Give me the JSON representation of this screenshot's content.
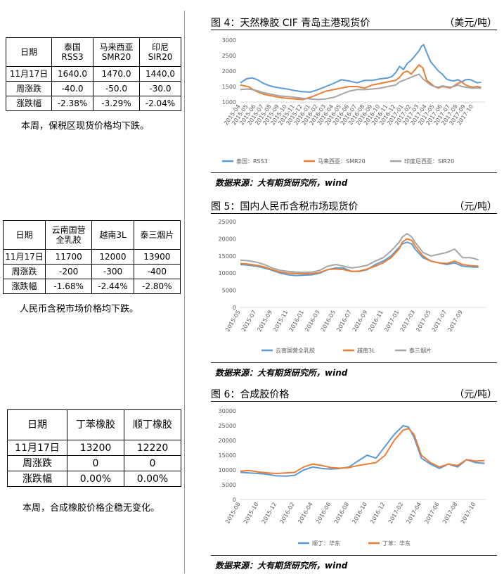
{
  "table1": {
    "headers": [
      [
        "日期"
      ],
      [
        "泰国",
        "RSS3"
      ],
      [
        "马来西亚",
        "SMR20"
      ],
      [
        "印尼",
        "SIR20"
      ]
    ],
    "rows": [
      [
        "11月17日",
        "1640.0",
        "1470.0",
        "1440.0"
      ],
      [
        "周涨跌",
        "-40.0",
        "-50.0",
        "-30.0"
      ],
      [
        "涨跌幅",
        "-2.38%",
        "-3.29%",
        "-2.04%"
      ]
    ],
    "note": "本周，保税区现货价格均下跌。"
  },
  "table2": {
    "headers": [
      [
        "日期"
      ],
      [
        "云南国营",
        "全乳胶"
      ],
      [
        "越南3L"
      ],
      [
        "泰三烟片"
      ]
    ],
    "rows": [
      [
        "11月17日",
        "11700",
        "12000",
        "13900"
      ],
      [
        "周涨跌",
        "-200",
        "-300",
        "-400"
      ],
      [
        "涨跌幅",
        "-1.68%",
        "-2.44%",
        "-2.80%"
      ]
    ],
    "note": "人民币含税市场价格均下跌。"
  },
  "table3": {
    "headers": [
      [
        "日期"
      ],
      [
        "丁苯橡胶"
      ],
      [
        "顺丁橡胶"
      ]
    ],
    "rows": [
      [
        "11月17日",
        "13200",
        "12220"
      ],
      [
        "周涨跌",
        "0",
        "0"
      ],
      [
        "涨跌幅",
        "0.00%",
        "0.00%"
      ]
    ],
    "note": "本周，合成橡胶价格企稳无变化。"
  },
  "figures": [
    {
      "title": "图 4：天然橡胶 CIF 青岛主港现货价",
      "unit": "（美元/吨）",
      "source": "数据来源：大有期货研究所，wind"
    },
    {
      "title": "图 5：国内人民币含税市场现货价",
      "unit": "（元/吨）",
      "source": "数据来源：大有期货研究所，wind"
    },
    {
      "title": "图 6：合成胶价格",
      "unit": "（元/吨）",
      "source": "数据来源：大有期货研究所，wind"
    }
  ],
  "chart_data": [
    {
      "type": "line",
      "yticks": [
        1000,
        1500,
        2000,
        2500,
        3000
      ],
      "ylim": [
        1000,
        3000
      ],
      "xlabels": [
        "2015-04",
        "2015-05",
        "2015-06",
        "2015-07",
        "2015-08",
        "2015-09",
        "2015-10",
        "2015-11",
        "2015-12",
        "2016-01",
        "2016-02",
        "2016-03",
        "2016-04",
        "2016-05",
        "2016-06",
        "2016-07",
        "2016-08",
        "2016-09",
        "2016-10",
        "2016-11",
        "2016-12",
        "2017-01",
        "2017-02",
        "2017-03",
        "2017-04",
        "2017-05",
        "2017-06",
        "2017-07",
        "2017-08",
        "2017-09",
        "2017-10"
      ],
      "xlim": [
        0,
        31.5
      ],
      "series": [
        {
          "name": "泰国：RSS3",
          "color": "#5b9bd5",
          "x": [
            0,
            0.8,
            1.5,
            2.2,
            3,
            3.8,
            4.5,
            5.2,
            6,
            6.8,
            7.5,
            8.2,
            9,
            10,
            11,
            12,
            13,
            14,
            15,
            16,
            17,
            18,
            19,
            19.5,
            20,
            20.5,
            21,
            21.5,
            22,
            22.5,
            23,
            23.3,
            23.6,
            24,
            24.5,
            25,
            25.5,
            26,
            26.5,
            27,
            27.5,
            28,
            28.5,
            29,
            29.5,
            30,
            30.5,
            31
          ],
          "y": [
            1620,
            1750,
            1780,
            1720,
            1600,
            1520,
            1480,
            1450,
            1420,
            1380,
            1350,
            1330,
            1320,
            1400,
            1500,
            1600,
            1720,
            1680,
            1620,
            1700,
            1700,
            1750,
            1780,
            1820,
            1950,
            2150,
            2050,
            2250,
            2350,
            2500,
            2650,
            2800,
            2850,
            2600,
            2300,
            2150,
            2000,
            1900,
            1750,
            1700,
            1680,
            1720,
            1650,
            1720,
            1730,
            1680,
            1620,
            1640
          ]
        },
        {
          "name": "马来西亚：SMR20",
          "color": "#ed7d31",
          "x": [
            0,
            1,
            2,
            3,
            4,
            5,
            6,
            7,
            8,
            9,
            10,
            11,
            12,
            13,
            14,
            15,
            16,
            17,
            18,
            19,
            20,
            20.5,
            21,
            21.5,
            22,
            22.5,
            23,
            23.5,
            24,
            24.5,
            25,
            25.5,
            26,
            26.5,
            27,
            27.5,
            28,
            28.5,
            29,
            29.5,
            30,
            30.5,
            31
          ],
          "y": [
            1550,
            1500,
            1350,
            1250,
            1200,
            1150,
            1120,
            1100,
            1080,
            1150,
            1250,
            1350,
            1400,
            1450,
            1500,
            1500,
            1450,
            1550,
            1600,
            1650,
            1700,
            1800,
            1950,
            2000,
            1900,
            2050,
            2200,
            2100,
            1700,
            1600,
            1500,
            1450,
            1500,
            1480,
            1450,
            1520,
            1600,
            1650,
            1550,
            1500,
            1480,
            1500,
            1470
          ]
        },
        {
          "name": "印度尼西亚：SIR20",
          "color": "#a5a5a5",
          "x": [
            0,
            1,
            2,
            3,
            4,
            5,
            6,
            7,
            8,
            9,
            10,
            11,
            12,
            13,
            14,
            15,
            16,
            17,
            18,
            19,
            20,
            20.5,
            21,
            21.5,
            22,
            22.5,
            23,
            23.5,
            24,
            24.5,
            25,
            25.5,
            26,
            26.5,
            27,
            27.5,
            28,
            28.5,
            29,
            29.5,
            30,
            30.5,
            31
          ],
          "y": [
            1400,
            1420,
            1380,
            1300,
            1250,
            1200,
            1180,
            1150,
            1120,
            1100,
            1080,
            1100,
            1150,
            1250,
            1350,
            1400,
            1400,
            1420,
            1450,
            1500,
            1550,
            1650,
            1700,
            1750,
            1800,
            1850,
            1900,
            1750,
            1650,
            1550,
            1500,
            1480,
            1520,
            1500,
            1480,
            1500,
            1550,
            1500,
            1480,
            1460,
            1450,
            1460,
            1440
          ]
        }
      ]
    },
    {
      "type": "line",
      "yticks": [
        0,
        5000,
        10000,
        15000,
        20000,
        25000
      ],
      "ylim": [
        0,
        25000
      ],
      "xlabels": [
        "2015-05",
        "2015-07",
        "2015-09",
        "2015-11",
        "2016-01",
        "2016-03",
        "2016-05",
        "2016-07",
        "2016-09",
        "2016-11",
        "2017-01",
        "2017-03",
        "2017-05",
        "2017-07",
        "2017-09"
      ],
      "xlim": [
        0,
        15.5
      ],
      "series": [
        {
          "name": "云南国营全乳胶",
          "color": "#5b9bd5",
          "x": [
            0,
            0.5,
            1,
            1.5,
            2,
            2.5,
            3,
            3.5,
            4,
            4.5,
            5,
            5.5,
            6,
            6.5,
            7,
            7.5,
            8,
            8.5,
            9,
            9.5,
            10,
            10.2,
            10.5,
            10.8,
            11,
            11.5,
            12,
            12.5,
            13,
            13.5,
            14,
            14.5,
            15
          ],
          "y": [
            12500,
            12300,
            12000,
            11500,
            10800,
            10000,
            9500,
            9300,
            9400,
            9500,
            10000,
            11000,
            11500,
            11500,
            10500,
            10500,
            11000,
            12500,
            13500,
            15000,
            17500,
            18500,
            19000,
            18500,
            17000,
            14500,
            13500,
            13000,
            12500,
            13000,
            12000,
            11800,
            11700
          ]
        },
        {
          "name": "越南3L",
          "color": "#ed7d31",
          "x": [
            0,
            0.5,
            1,
            1.5,
            2,
            2.5,
            3,
            3.5,
            4,
            4.5,
            5,
            5.5,
            6,
            6.5,
            7,
            7.5,
            8,
            8.5,
            9,
            9.5,
            10,
            10.2,
            10.5,
            10.8,
            11,
            11.5,
            12,
            12.5,
            13,
            13.5,
            14,
            14.5,
            15
          ],
          "y": [
            12800,
            12600,
            12300,
            11800,
            11000,
            10300,
            10000,
            9900,
            9800,
            9900,
            10200,
            11000,
            11200,
            11000,
            10500,
            10600,
            11200,
            12000,
            13000,
            14500,
            17000,
            19000,
            20000,
            19500,
            18000,
            15000,
            13500,
            13000,
            12800,
            13500,
            12500,
            12200,
            12000
          ]
        },
        {
          "name": "泰三烟片",
          "color": "#a5a5a5",
          "x": [
            0,
            0.5,
            1,
            1.5,
            2,
            2.5,
            3,
            3.5,
            4,
            4.5,
            5,
            5.5,
            6,
            6.5,
            7,
            7.5,
            8,
            8.5,
            9,
            9.5,
            10,
            10.2,
            10.5,
            10.8,
            11,
            11.5,
            12,
            12.5,
            13,
            13.5,
            14,
            14.5,
            15
          ],
          "y": [
            13800,
            13600,
            13200,
            12500,
            11500,
            10800,
            10500,
            10300,
            10200,
            10300,
            10800,
            12000,
            12500,
            12000,
            11500,
            11800,
            12300,
            13500,
            14500,
            16500,
            19000,
            20500,
            21500,
            20500,
            19000,
            16000,
            15000,
            15500,
            16000,
            17000,
            14500,
            14500,
            13900
          ]
        }
      ]
    },
    {
      "type": "line",
      "yticks": [
        0,
        5000,
        10000,
        15000,
        20000,
        25000,
        30000
      ],
      "ylim": [
        0,
        30000
      ],
      "xlabels": [
        "2015-08",
        "2015-10",
        "2015-12",
        "2016-02",
        "2016-04",
        "2016-06",
        "2016-08",
        "2016-10",
        "2016-12",
        "2017-02",
        "2017-04",
        "2017-06",
        "2017-08",
        "2017-10"
      ],
      "xlim": [
        0,
        13.6
      ],
      "series": [
        {
          "name": "顺丁：华东",
          "color": "#5b9bd5",
          "x": [
            0,
            0.5,
            1,
            1.5,
            2,
            2.5,
            3,
            3.5,
            4,
            4.5,
            5,
            5.5,
            6,
            6.5,
            7,
            7.5,
            8,
            8.5,
            9,
            9.3,
            9.6,
            10,
            10.5,
            11,
            11.5,
            12,
            12.5,
            13,
            13.5
          ],
          "y": [
            9200,
            9000,
            8800,
            8500,
            8000,
            7900,
            8200,
            10000,
            11000,
            10500,
            10300,
            10500,
            11000,
            13000,
            15000,
            14000,
            18000,
            22000,
            25000,
            24500,
            21000,
            14000,
            12000,
            10500,
            12000,
            11000,
            13500,
            12500,
            12220
          ]
        },
        {
          "name": "丁苯：华东",
          "color": "#ed7d31",
          "x": [
            0,
            0.5,
            1,
            1.5,
            2,
            2.5,
            3,
            3.5,
            4,
            4.5,
            5,
            5.5,
            6,
            6.5,
            7,
            7.5,
            8,
            8.5,
            9,
            9.3,
            9.6,
            10,
            10.5,
            11,
            11.5,
            12,
            12.5,
            13,
            13.5
          ],
          "y": [
            9600,
            9800,
            9300,
            9000,
            8800,
            9000,
            9200,
            11000,
            12000,
            11500,
            10800,
            10600,
            10800,
            11500,
            12000,
            12500,
            15000,
            20000,
            23500,
            24000,
            22000,
            15000,
            12500,
            11000,
            12000,
            11500,
            13500,
            13000,
            13200
          ]
        }
      ]
    }
  ]
}
